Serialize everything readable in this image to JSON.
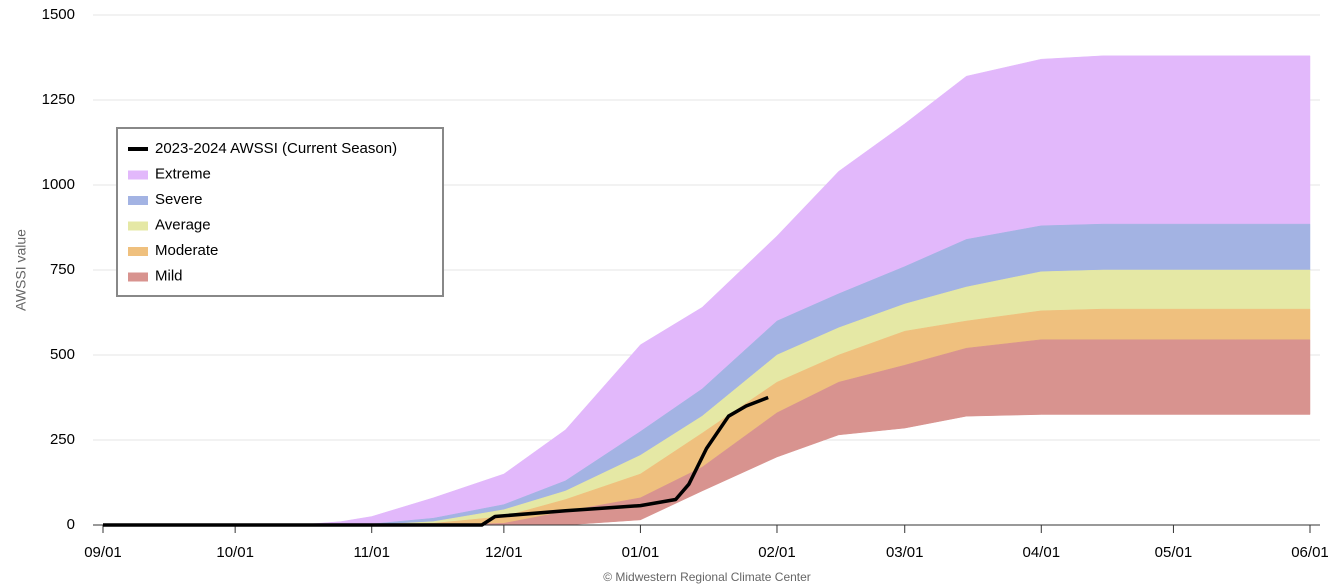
{
  "chart_data": {
    "type": "area",
    "y_label": "AWSSI value",
    "credit": "© Midwestern Regional Climate Center",
    "ylim": [
      0,
      1500
    ],
    "yticks": [
      0,
      250,
      500,
      750,
      1000,
      1250,
      1500
    ],
    "grid": true,
    "xlim": [
      "09/01",
      "06/01"
    ],
    "xticks": [
      "09/01",
      "10/01",
      "11/01",
      "12/01",
      "01/01",
      "02/01",
      "03/01",
      "04/01",
      "05/01",
      "06/01"
    ],
    "legend": "upper left",
    "x": [
      "09/01",
      "10/15",
      "10/25",
      "11/01",
      "11/15",
      "12/01",
      "12/15",
      "01/01",
      "01/15",
      "02/01",
      "02/15",
      "03/01",
      "03/15",
      "04/01",
      "04/15",
      "05/01",
      "05/15",
      "06/01"
    ],
    "series": [
      {
        "name": "2023-2024 AWSSI (Current Season)",
        "type": "line",
        "color": "#000000",
        "x": [
          "09/01",
          "11/26",
          "11/29",
          "12/15",
          "01/01",
          "01/09",
          "01/12",
          "01/16",
          "01/21",
          "01/25",
          "01/30"
        ],
        "values": [
          0,
          0,
          25,
          42,
          57,
          75,
          120,
          225,
          320,
          350,
          375
        ]
      },
      {
        "name": "Extreme",
        "color": "#e2b8fb",
        "low": [
          0,
          0,
          0,
          3,
          20,
          60,
          130,
          275,
          400,
          600,
          680,
          760,
          840,
          880,
          885,
          885,
          885,
          885
        ],
        "values": [
          0,
          0,
          10,
          25,
          80,
          150,
          280,
          530,
          640,
          850,
          1040,
          1180,
          1320,
          1370,
          1380,
          1380,
          1380,
          1380
        ]
      },
      {
        "name": "Severe",
        "color": "#a3b3e3",
        "low": [
          0,
          0,
          0,
          0,
          10,
          45,
          100,
          205,
          320,
          500,
          580,
          650,
          700,
          745,
          750,
          750,
          750,
          750
        ],
        "values": [
          0,
          0,
          0,
          3,
          20,
          60,
          130,
          275,
          400,
          600,
          680,
          760,
          840,
          880,
          885,
          885,
          885,
          885
        ]
      },
      {
        "name": "Average",
        "color": "#e5e8a5",
        "low": [
          0,
          0,
          0,
          0,
          5,
          25,
          75,
          150,
          270,
          420,
          500,
          570,
          600,
          630,
          635,
          635,
          635,
          635
        ],
        "values": [
          0,
          0,
          0,
          0,
          10,
          45,
          100,
          205,
          320,
          500,
          580,
          650,
          700,
          745,
          750,
          750,
          750,
          750
        ]
      },
      {
        "name": "Moderate",
        "color": "#efc07e",
        "low": [
          0,
          0,
          0,
          0,
          0,
          5,
          40,
          80,
          170,
          330,
          420,
          470,
          520,
          545,
          545,
          545,
          545,
          545
        ],
        "values": [
          0,
          0,
          0,
          0,
          5,
          25,
          75,
          150,
          270,
          420,
          500,
          570,
          600,
          630,
          635,
          635,
          635,
          635
        ]
      },
      {
        "name": "Mild",
        "color": "#d8938f",
        "low": [
          0,
          0,
          0,
          0,
          0,
          0,
          0,
          15,
          100,
          200,
          265,
          285,
          320,
          325,
          325,
          325,
          325,
          325
        ],
        "values": [
          0,
          0,
          0,
          0,
          0,
          5,
          40,
          80,
          170,
          330,
          420,
          470,
          520,
          545,
          545,
          545,
          545,
          545
        ]
      }
    ]
  }
}
